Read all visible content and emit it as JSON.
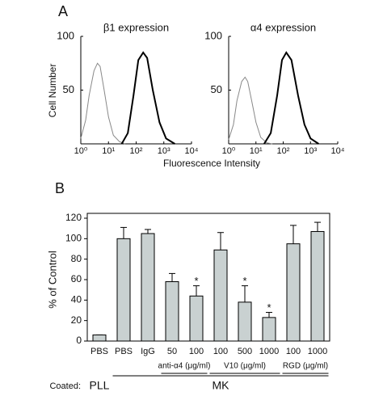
{
  "figure": {
    "panel_labels": [
      "A",
      "B"
    ],
    "shared_y_label": "Cell Number",
    "shared_x_label": "Fluorescence Intensity"
  },
  "chart_data": [
    {
      "type": "line",
      "title": "β1 expression",
      "xscale": "log",
      "xlim": [
        1,
        10000
      ],
      "xticks": [
        {
          "value": 1,
          "label": "10⁰"
        },
        {
          "value": 10,
          "label": "10¹"
        },
        {
          "value": 100,
          "label": "10²"
        },
        {
          "value": 1000,
          "label": "10³"
        },
        {
          "value": 10000,
          "label": "10⁴"
        }
      ],
      "ylim": [
        0,
        100
      ],
      "yticks": [
        50,
        100
      ],
      "series": [
        {
          "color": "#888888",
          "x": [
            1,
            1.5,
            2,
            3,
            4,
            5,
            7,
            10,
            15,
            25,
            40
          ],
          "values": [
            5,
            22,
            45,
            68,
            75,
            72,
            50,
            25,
            8,
            2,
            0
          ]
        },
        {
          "color": "#000000",
          "x": [
            30,
            50,
            80,
            120,
            180,
            250,
            400,
            700,
            1200,
            2500
          ],
          "values": [
            0,
            10,
            45,
            78,
            85,
            80,
            50,
            20,
            5,
            0
          ]
        }
      ]
    },
    {
      "type": "line",
      "title": "α4 expression",
      "xscale": "log",
      "xlim": [
        1,
        10000
      ],
      "xticks": [
        {
          "value": 1,
          "label": "10⁰"
        },
        {
          "value": 10,
          "label": "10¹"
        },
        {
          "value": 100,
          "label": "10²"
        },
        {
          "value": 1000,
          "label": "10³"
        },
        {
          "value": 10000,
          "label": "10⁴"
        }
      ],
      "ylim": [
        0,
        100
      ],
      "yticks": [
        50,
        100
      ],
      "series": [
        {
          "color": "#888888",
          "x": [
            1,
            1.5,
            2,
            3,
            4,
            5,
            7,
            10,
            15,
            25,
            40
          ],
          "values": [
            4,
            18,
            40,
            58,
            62,
            58,
            40,
            20,
            6,
            1,
            0
          ]
        },
        {
          "color": "#000000",
          "x": [
            20,
            35,
            60,
            90,
            130,
            200,
            350,
            600,
            1000,
            2000
          ],
          "values": [
            0,
            10,
            45,
            78,
            85,
            78,
            45,
            18,
            5,
            0
          ]
        }
      ]
    },
    {
      "type": "bar",
      "y_label": "% of Control",
      "color": "#c9d1d1",
      "categories": [
        "PBS",
        "PBS",
        "IgG",
        "50",
        "100",
        "100",
        "500",
        "1000",
        "100",
        "1000"
      ],
      "values": [
        6,
        100,
        105,
        58,
        44,
        89,
        38,
        23,
        95,
        107
      ],
      "errors": [
        0,
        11,
        4,
        8,
        10,
        17,
        16,
        5,
        18,
        9
      ],
      "sig_labels": [
        null,
        null,
        null,
        null,
        "*",
        null,
        "*",
        "*",
        null,
        null
      ],
      "ylim": [
        0,
        120
      ],
      "yticks": [
        0,
        20,
        40,
        60,
        80,
        100,
        120
      ],
      "groups": [
        {
          "label": "anti-α4 (μg/ml)",
          "start": 3,
          "end": 4
        },
        {
          "label": "V10 (μg/ml)",
          "start": 5,
          "end": 7
        },
        {
          "label": "RGD (μg/ml)",
          "start": 8,
          "end": 9
        }
      ],
      "coating": {
        "label": "Coated:",
        "items": [
          {
            "label": "PLL",
            "start": 0,
            "end": 0
          },
          {
            "label": "MK",
            "start": 1,
            "end": 9
          }
        ]
      }
    }
  ]
}
